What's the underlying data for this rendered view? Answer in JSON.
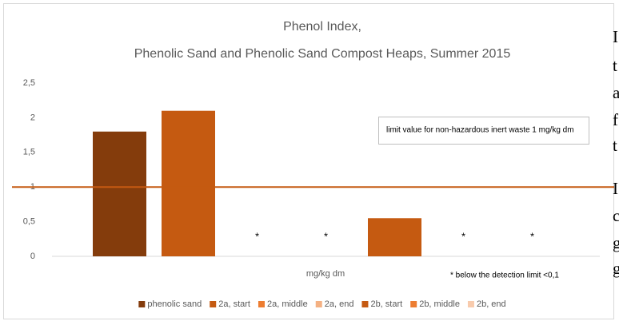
{
  "chart_data": {
    "type": "bar",
    "title": "Phenol Index,",
    "subtitle": "Phenolic Sand and Phenolic Sand Compost Heaps, Summer 2015",
    "xlabel": "mg/kg dm",
    "categories": [
      null
    ],
    "series": [
      {
        "name": "phenolic sand",
        "color": "#843c0c",
        "values": [
          1.8
        ]
      },
      {
        "name": "2a, start",
        "color": "#c55a11",
        "values": [
          2.1
        ]
      },
      {
        "name": "2a, middle",
        "color": "#ed7d31",
        "values": [
          null
        ],
        "value_labels": [
          "*"
        ]
      },
      {
        "name": "2a, end",
        "color": "#f4b183",
        "values": [
          null
        ],
        "value_labels": [
          "*"
        ]
      },
      {
        "name": "2b, start",
        "color": "#c55a11",
        "values": [
          0.55
        ]
      },
      {
        "name": "2b, middle",
        "color": "#ed7d31",
        "values": [
          null
        ],
        "value_labels": [
          "*"
        ]
      },
      {
        "name": "2b, end",
        "color": "#f8cbad",
        "values": [
          null
        ],
        "value_labels": [
          "*"
        ]
      }
    ],
    "ylim": [
      0,
      2.5
    ],
    "yticks": [
      {
        "value": 0,
        "label": "0"
      },
      {
        "value": 0.5,
        "label": "0,5"
      },
      {
        "value": 1,
        "label": "1"
      },
      {
        "value": 1.5,
        "label": "1,5"
      },
      {
        "value": 2,
        "label": "2"
      },
      {
        "value": 2.5,
        "label": "2,5"
      }
    ],
    "reference_line": {
      "value": 1,
      "color": "#c55a11"
    },
    "annotations": [
      "limit value for non-hazardous inert waste 1 mg/kg dm",
      "* below the detection limit <0,1"
    ],
    "legend": "bottom"
  },
  "side_text": [
    "I",
    "t",
    "a",
    "f",
    "t",
    "I",
    "c",
    "g",
    "g"
  ]
}
